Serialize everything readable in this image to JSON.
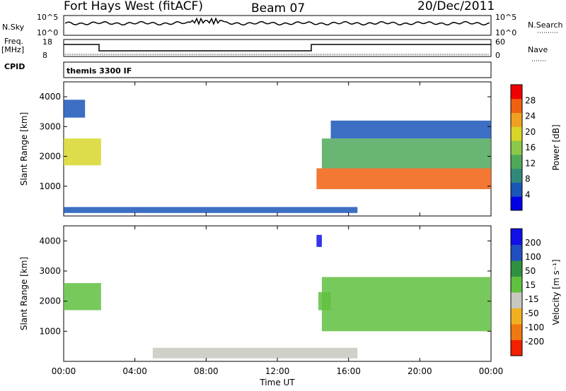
{
  "header": {
    "station": "Fort Hays West (fitACF)",
    "beam": "Beam 07",
    "date": "20/Dec/2011"
  },
  "panels": {
    "nsky_label": "N.Sky",
    "nsky_ticks": [
      "10^5",
      "10^0"
    ],
    "nsearch_label": "N.Search",
    "nsearch_ticks": [
      "10^5",
      "10^0"
    ],
    "freq_label": "Freq.",
    "freq_unit": "[MHz]",
    "freq_ticks": [
      "18",
      "8"
    ],
    "nave_label": "Nave",
    "nave_ticks": [
      "60",
      "0"
    ],
    "cpid_label": "CPID",
    "cpid_text": "themis 3300 IF"
  },
  "colors": {
    "power_scale": [
      "#0000e6",
      "#1a55b8",
      "#2f8a7a",
      "#4fa85a",
      "#8bc84a",
      "#d8d62a",
      "#f0a020",
      "#f06010",
      "#f00000"
    ],
    "velocity_scale": [
      "#1010e6",
      "#2050c0",
      "#2f9040",
      "#60c040",
      "#c8c8c0",
      "#f0b020",
      "#f07810",
      "#f02000"
    ],
    "nsky_line": "#000000"
  },
  "chart_data": [
    {
      "type": "heatmap",
      "title": "Power",
      "xlabel": "",
      "ylabel": "Slant Range [km]",
      "xlim": [
        "00:00",
        "24:00"
      ],
      "ylim": [
        0,
        4500
      ],
      "x_ticks": [
        "00:00",
        "04:00",
        "08:00",
        "12:00",
        "16:00",
        "20:00",
        "00:00"
      ],
      "y_ticks": [
        "1000",
        "2000",
        "3000",
        "4000"
      ],
      "colorbar_label": "Power [dB]",
      "colorbar_ticks": [
        "28",
        "24",
        "20",
        "16",
        "12",
        "8",
        "4"
      ],
      "colorbar_range": [
        0,
        32
      ],
      "regions": [
        {
          "t_start_h": 0.0,
          "t_end_h": 2.1,
          "range_km": [
            1700,
            2600
          ],
          "value_db": 20
        },
        {
          "t_start_h": 0.0,
          "t_end_h": 1.2,
          "range_km": [
            3300,
            3900
          ],
          "value_db": 6
        },
        {
          "t_start_h": 14.2,
          "t_end_h": 24.0,
          "range_km": [
            900,
            1600
          ],
          "value_db": 28
        },
        {
          "t_start_h": 14.5,
          "t_end_h": 24.0,
          "range_km": [
            1600,
            2600
          ],
          "value_db": 14
        },
        {
          "t_start_h": 15.0,
          "t_end_h": 24.0,
          "range_km": [
            2600,
            3200
          ],
          "value_db": 6
        },
        {
          "t_start_h": 0.0,
          "t_end_h": 16.5,
          "range_km": [
            100,
            300
          ],
          "value_db": 6
        }
      ]
    },
    {
      "type": "heatmap",
      "title": "Velocity",
      "xlabel": "Time UT",
      "ylabel": "Slant Range [km]",
      "xlim": [
        "00:00",
        "24:00"
      ],
      "ylim": [
        0,
        4500
      ],
      "x_ticks": [
        "00:00",
        "04:00",
        "08:00",
        "12:00",
        "16:00",
        "20:00",
        "00:00"
      ],
      "y_ticks": [
        "1000",
        "2000",
        "3000",
        "4000"
      ],
      "colorbar_label": "Velocity [m s⁻¹]",
      "colorbar_ticks": [
        "200",
        "100",
        "50",
        "15",
        "-15",
        "-50",
        "-100",
        "-200"
      ],
      "colorbar_range": [
        -250,
        250
      ],
      "regions": [
        {
          "t_start_h": 0.0,
          "t_end_h": 2.1,
          "range_km": [
            1700,
            2600
          ],
          "value_ms": 0
        },
        {
          "t_start_h": 14.5,
          "t_end_h": 24.0,
          "range_km": [
            1000,
            2800
          ],
          "value_ms": 0
        },
        {
          "t_start_h": 14.3,
          "t_end_h": 15.0,
          "range_km": [
            1700,
            2300
          ],
          "value_ms": 40
        },
        {
          "t_start_h": 14.2,
          "t_end_h": 14.5,
          "range_km": [
            3800,
            4200
          ],
          "value_ms": 220
        },
        {
          "t_start_h": 5.0,
          "t_end_h": 16.5,
          "range_km": [
            100,
            450
          ],
          "value_ms": -40
        }
      ]
    }
  ]
}
